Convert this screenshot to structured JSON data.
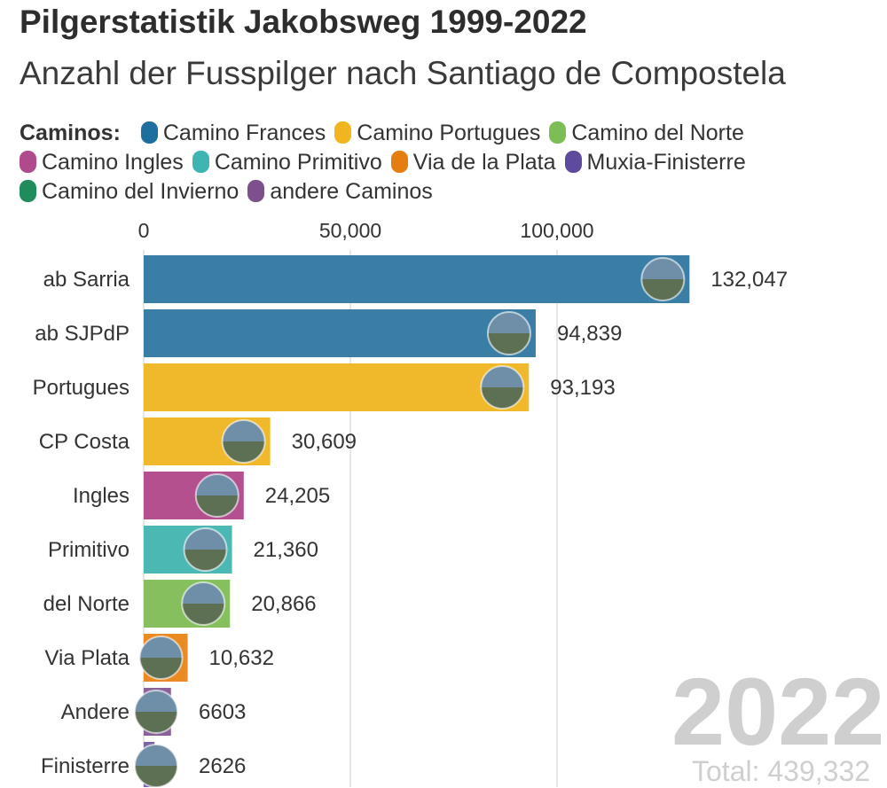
{
  "chart_data": {
    "type": "bar",
    "orientation": "horizontal",
    "title": "Pilgerstatistik Jakobsweg 1999-2022",
    "subtitle": "Anzahl der Fusspilger nach Santiago de Compostela",
    "legend_title": "Caminos:",
    "legend": [
      {
        "name": "Camino Frances",
        "color": "#1f6f9e"
      },
      {
        "name": "Camino Portugues",
        "color": "#f0b51f"
      },
      {
        "name": "Camino del Norte",
        "color": "#7cbd55"
      },
      {
        "name": "Camino Ingles",
        "color": "#b04a8c"
      },
      {
        "name": "Camino Primitivo",
        "color": "#3fb5b3"
      },
      {
        "name": "Via de la Plata",
        "color": "#e57e10"
      },
      {
        "name": "Muxia-Finisterre",
        "color": "#5f4b9e"
      },
      {
        "name": "Camino del Invierno",
        "color": "#1e8c5c"
      },
      {
        "name": "andere Caminos",
        "color": "#7d4f8c"
      }
    ],
    "categories": [
      "ab Sarria",
      "ab SJPdP",
      "Portugues",
      "CP Costa",
      "Ingles",
      "Primitivo",
      "del Norte",
      "Via Plata",
      "Andere",
      "Finisterre"
    ],
    "values": [
      132047,
      94839,
      93193,
      30609,
      24205,
      21360,
      20866,
      10632,
      6603,
      2626
    ],
    "value_labels": [
      "132,047",
      "94,839",
      "93,193",
      "30,609",
      "24,205",
      "21,360",
      "20,866",
      "10,632",
      "6603",
      "2626"
    ],
    "bar_colors": [
      "#3a7ea6",
      "#3a7ea6",
      "#f0b82b",
      "#f0b82b",
      "#b5508f",
      "#4cb8b4",
      "#86c05e",
      "#e98a22",
      "#8b6199",
      "#7a63a6"
    ],
    "x_ticks": [
      0,
      50000,
      100000
    ],
    "x_tick_labels": [
      "0",
      "50,000",
      "100,000"
    ],
    "xlim": [
      0,
      150000
    ],
    "grid": true,
    "legend_position": "top",
    "year": "2022",
    "total_label": "Total: 439,332"
  }
}
